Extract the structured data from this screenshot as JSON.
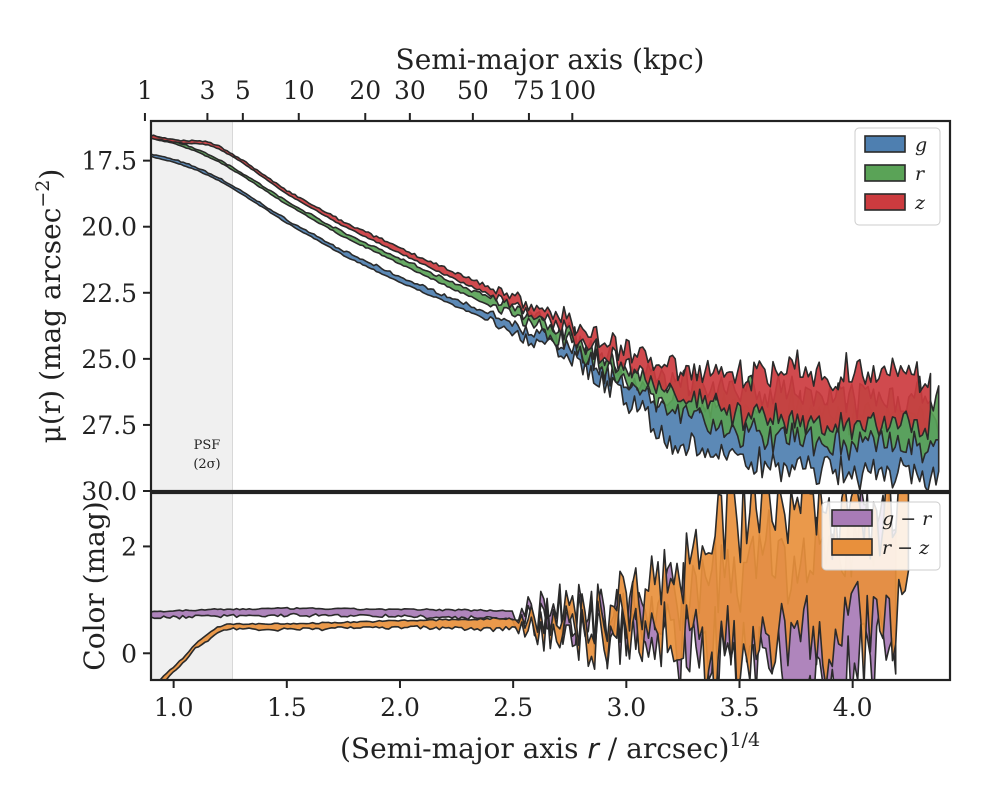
{
  "chart_data": [
    {
      "type": "area",
      "panel": "surface-brightness",
      "ylabel_main": "μ(r) (mag arcsec",
      "ylabel_exp": "−2",
      "ylabel_close": ")",
      "ylim": [
        30.0,
        16.0
      ],
      "xlim": [
        0.9,
        4.43
      ],
      "yticks": [
        17.5,
        20.0,
        22.5,
        25.0,
        27.5,
        30.0
      ],
      "ytick_labels": [
        "17.5",
        "20.0",
        "22.5",
        "25.0",
        "27.5",
        "30.0"
      ],
      "top_axis": {
        "label": "Semi-major axis (kpc)",
        "ticks": [
          {
            "kpc": 1,
            "label": "1"
          },
          {
            "kpc": 3,
            "label": "3"
          },
          {
            "kpc": 5,
            "label": "5"
          },
          {
            "kpc": 10,
            "label": "10"
          },
          {
            "kpc": 20,
            "label": "20"
          },
          {
            "kpc": 30,
            "label": "30"
          },
          {
            "kpc": 50,
            "label": "50"
          },
          {
            "kpc": 75,
            "label": "75"
          },
          {
            "kpc": 100,
            "label": "100"
          }
        ]
      },
      "psf_region": {
        "x_max": 1.26,
        "label_line1": "PSF",
        "label_line2": "(2σ)"
      },
      "legend_position": "top-right",
      "series": [
        {
          "name": "g",
          "color": "#4e7fb0",
          "x": [
            0.9,
            1.0,
            1.1,
            1.2,
            1.3,
            1.5,
            1.75,
            2.0,
            2.25,
            2.5,
            2.75,
            3.0,
            3.2,
            3.5,
            3.8,
            4.0,
            4.2,
            4.38
          ],
          "y": [
            17.3,
            17.5,
            17.8,
            18.2,
            18.7,
            19.8,
            21.0,
            22.0,
            22.9,
            23.8,
            24.8,
            26.2,
            27.3,
            27.9,
            28.0,
            28.2,
            28.3,
            28.4
          ],
          "half_width": [
            0.05,
            0.05,
            0.05,
            0.05,
            0.05,
            0.06,
            0.08,
            0.1,
            0.12,
            0.15,
            0.2,
            0.3,
            0.8,
            1.0,
            1.1,
            1.1,
            1.1,
            1.0
          ]
        },
        {
          "name": "r",
          "color": "#5aa357",
          "x": [
            0.9,
            1.0,
            1.1,
            1.2,
            1.3,
            1.5,
            1.75,
            2.0,
            2.25,
            2.5,
            2.75,
            3.0,
            3.2,
            3.5,
            3.8,
            4.0,
            4.2,
            4.38
          ],
          "y": [
            16.6,
            16.8,
            17.1,
            17.5,
            18.0,
            19.1,
            20.3,
            21.3,
            22.3,
            23.2,
            24.2,
            25.6,
            26.4,
            27.0,
            27.1,
            27.3,
            27.4,
            27.5
          ],
          "half_width": [
            0.05,
            0.05,
            0.05,
            0.05,
            0.05,
            0.06,
            0.08,
            0.1,
            0.12,
            0.15,
            0.2,
            0.25,
            0.5,
            0.8,
            0.9,
            0.9,
            0.9,
            0.9
          ]
        },
        {
          "name": "z",
          "color": "#cc3b3f",
          "x": [
            0.9,
            1.0,
            1.05,
            1.1,
            1.15,
            1.2,
            1.3,
            1.5,
            1.75,
            2.0,
            2.25,
            2.5,
            2.75,
            3.0,
            3.2,
            3.5,
            3.8,
            4.0,
            4.2,
            4.35
          ],
          "y": [
            16.6,
            16.75,
            16.8,
            16.8,
            16.85,
            17.0,
            17.5,
            18.7,
            19.9,
            20.9,
            21.9,
            22.8,
            23.8,
            25.0,
            25.7,
            26.3,
            26.5,
            26.6,
            26.6,
            26.6
          ],
          "half_width": [
            0.05,
            0.05,
            0.05,
            0.05,
            0.05,
            0.05,
            0.05,
            0.06,
            0.08,
            0.1,
            0.12,
            0.15,
            0.2,
            0.3,
            0.5,
            0.8,
            0.9,
            1.0,
            1.0,
            0.9
          ]
        }
      ]
    },
    {
      "type": "area",
      "panel": "color",
      "ylabel": "Color (mag)",
      "ylim": [
        -0.5,
        3.0
      ],
      "xlim": [
        0.9,
        4.43
      ],
      "yticks": [
        0,
        2
      ],
      "ytick_labels": [
        "0",
        "2"
      ],
      "xticks": [
        1.0,
        1.5,
        2.0,
        2.5,
        3.0,
        3.5,
        4.0
      ],
      "xtick_labels": [
        "1.0",
        "1.5",
        "2.0",
        "2.5",
        "3.0",
        "3.5",
        "4.0"
      ],
      "xlabel_main": "(Semi-major axis ",
      "xlabel_var": "r",
      "xlabel_rest": " / arcsec)",
      "xlabel_exp": "1/4",
      "legend_position": "top-right",
      "series": [
        {
          "name": "g − r",
          "color": "#a87bb6",
          "x": [
            0.9,
            1.2,
            1.5,
            2.0,
            2.5,
            2.8,
            3.0,
            3.2,
            3.4,
            3.6,
            3.8,
            4.0,
            4.2
          ],
          "y": [
            0.72,
            0.76,
            0.78,
            0.76,
            0.72,
            0.7,
            0.65,
            0.6,
            0.7,
            0.8,
            0.5,
            0.9,
            1.2
          ],
          "half_width": [
            0.06,
            0.06,
            0.06,
            0.06,
            0.08,
            0.12,
            0.2,
            0.4,
            0.7,
            1.0,
            1.2,
            1.3,
            1.3
          ]
        },
        {
          "name": "r − z",
          "color": "#e8903c",
          "x": [
            0.9,
            0.95,
            1.0,
            1.05,
            1.1,
            1.15,
            1.2,
            1.25,
            1.3,
            1.5,
            2.0,
            2.5,
            2.8,
            3.0,
            3.2,
            3.4,
            3.6,
            3.8,
            4.0,
            4.2,
            4.25
          ],
          "y": [
            -0.7,
            -0.5,
            -0.3,
            -0.1,
            0.15,
            0.3,
            0.45,
            0.5,
            0.5,
            0.5,
            0.55,
            0.55,
            0.6,
            0.7,
            0.9,
            1.3,
            1.5,
            1.6,
            1.5,
            1.6,
            1.6
          ],
          "half_width": [
            0.05,
            0.05,
            0.05,
            0.05,
            0.05,
            0.05,
            0.05,
            0.05,
            0.05,
            0.05,
            0.06,
            0.1,
            0.15,
            0.3,
            0.6,
            1.2,
            1.3,
            1.3,
            1.0,
            1.0,
            0.9
          ]
        }
      ]
    }
  ]
}
